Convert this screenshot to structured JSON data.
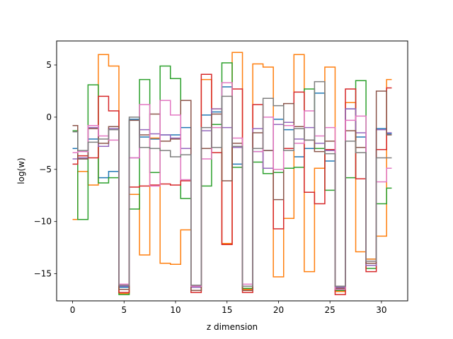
{
  "chart_data": {
    "type": "line",
    "drawstyle": "steps-mid",
    "xlabel": "z dimension",
    "ylabel": "log(w)",
    "xlim": [
      -1.55,
      32.55
    ],
    "ylim": [
      -17.6,
      7.3
    ],
    "xticks": [
      0,
      5,
      10,
      15,
      20,
      25,
      30
    ],
    "yticks": [
      -15,
      -10,
      -5,
      0,
      5
    ],
    "ytick_labels": [
      "−15",
      "−10",
      "−5",
      "0",
      "5"
    ],
    "grid": false,
    "legend": "none",
    "x": [
      0,
      1,
      2,
      3,
      4,
      5,
      6,
      7,
      8,
      9,
      10,
      11,
      12,
      13,
      14,
      15,
      16,
      17,
      18,
      19,
      20,
      21,
      22,
      23,
      24,
      25,
      26,
      27,
      28,
      29,
      30,
      31
    ],
    "series": [
      {
        "color": "#1f77b4",
        "values": [
          -3.0,
          -4.0,
          -2.1,
          -5.8,
          -5.2,
          -16.3,
          -0.2,
          -1.9,
          -2.1,
          -1.7,
          -1.7,
          -1.0,
          -16.2,
          0.2,
          0.5,
          2.9,
          -4.5,
          -16.4,
          -3.3,
          -3.2,
          -0.2,
          -1.2,
          -3.8,
          -3.0,
          2.3,
          -4.2,
          -16.3,
          0.8,
          -1.9,
          -13.6,
          -1.1,
          -1.6
        ]
      },
      {
        "color": "#ff7f0e",
        "values": [
          -9.8,
          -5.2,
          -6.5,
          6.0,
          4.9,
          -16.9,
          -7.4,
          -13.2,
          -2.0,
          -14.0,
          -14.1,
          -10.8,
          -16.6,
          3.6,
          0.8,
          -12.1,
          6.2,
          -16.5,
          5.1,
          4.8,
          -15.3,
          -9.7,
          6.0,
          -14.8,
          -4.9,
          4.8,
          -16.7,
          1.4,
          -12.9,
          -13.6,
          -11.4,
          3.6
        ]
      },
      {
        "color": "#2ca02c",
        "values": [
          -1.3,
          -9.8,
          3.1,
          -6.3,
          -5.8,
          -17.0,
          -8.8,
          3.6,
          -5.3,
          4.9,
          3.7,
          -7.8,
          -16.6,
          -6.6,
          -0.7,
          5.2,
          -4.8,
          -16.4,
          -4.3,
          -5.4,
          -5.3,
          -4.9,
          -4.8,
          2.7,
          -3.0,
          -7.0,
          -16.6,
          -5.8,
          3.5,
          -14.5,
          -8.3,
          -6.8
        ]
      },
      {
        "color": "#d62728",
        "values": [
          -4.5,
          -3.7,
          -3.9,
          2.0,
          0.6,
          -16.8,
          -6.7,
          -6.6,
          -6.5,
          -6.4,
          -6.5,
          -6.1,
          -16.8,
          4.1,
          -3.4,
          -12.2,
          2.7,
          -16.8,
          1.2,
          -4.9,
          -10.7,
          -3.0,
          2.4,
          -7.2,
          -8.3,
          -3.1,
          -17.0,
          2.7,
          -5.9,
          -14.8,
          -3.1,
          2.8
        ]
      },
      {
        "color": "#9467bd",
        "values": [
          -4.0,
          -3.9,
          -1.0,
          -2.8,
          -1.1,
          -16.2,
          -3.9,
          -1.2,
          -1.6,
          -1.7,
          -2.0,
          -3.0,
          -16.3,
          -1.3,
          0.8,
          -1.0,
          -2.9,
          -16.2,
          -1.1,
          -4.9,
          -0.7,
          -0.5,
          -2.1,
          -1.0,
          -2.5,
          -3.2,
          -16.3,
          0.8,
          -1.5,
          -14.2,
          -1.2,
          -1.5
        ]
      },
      {
        "color": "#8c564b",
        "values": [
          -0.8,
          -4.0,
          -1.1,
          -2.5,
          -0.9,
          -16.5,
          -0.3,
          -1.7,
          0.3,
          -2.3,
          -2.1,
          1.6,
          -16.6,
          -3.0,
          0.3,
          -6.1,
          -2.5,
          -16.6,
          -1.5,
          -3.2,
          -7.9,
          1.3,
          -0.9,
          -2.2,
          -3.3,
          -2.3,
          -16.4,
          -1.3,
          -2.9,
          -14.0,
          2.5,
          -1.7
        ]
      },
      {
        "color": "#e377c2",
        "values": [
          -3.4,
          -3.3,
          -0.8,
          -1.8,
          -2.2,
          -16.0,
          -3.9,
          1.2,
          -6.6,
          1.6,
          0.2,
          -6.0,
          -16.2,
          -4.0,
          -1.0,
          3.3,
          -2.0,
          -16.0,
          -3.3,
          0.0,
          -5.0,
          -0.8,
          -2.5,
          0.6,
          -1.8,
          -1.0,
          -16.5,
          -0.3,
          0.1,
          -13.8,
          -6.2,
          -4.9
        ]
      },
      {
        "color": "#7f7f7f",
        "values": [
          -1.4,
          -3.2,
          -2.4,
          -2.1,
          -1.2,
          -16.1,
          0.0,
          -2.9,
          -3.0,
          -3.2,
          -3.8,
          -3.6,
          -16.1,
          -1.0,
          -2.9,
          2.0,
          -2.8,
          -16.2,
          -3.0,
          1.8,
          1.1,
          -3.2,
          -1.1,
          -2.2,
          3.4,
          -3.5,
          -16.2,
          -2.3,
          -3.4,
          -13.8,
          -3.9,
          -3.9
        ]
      }
    ]
  }
}
